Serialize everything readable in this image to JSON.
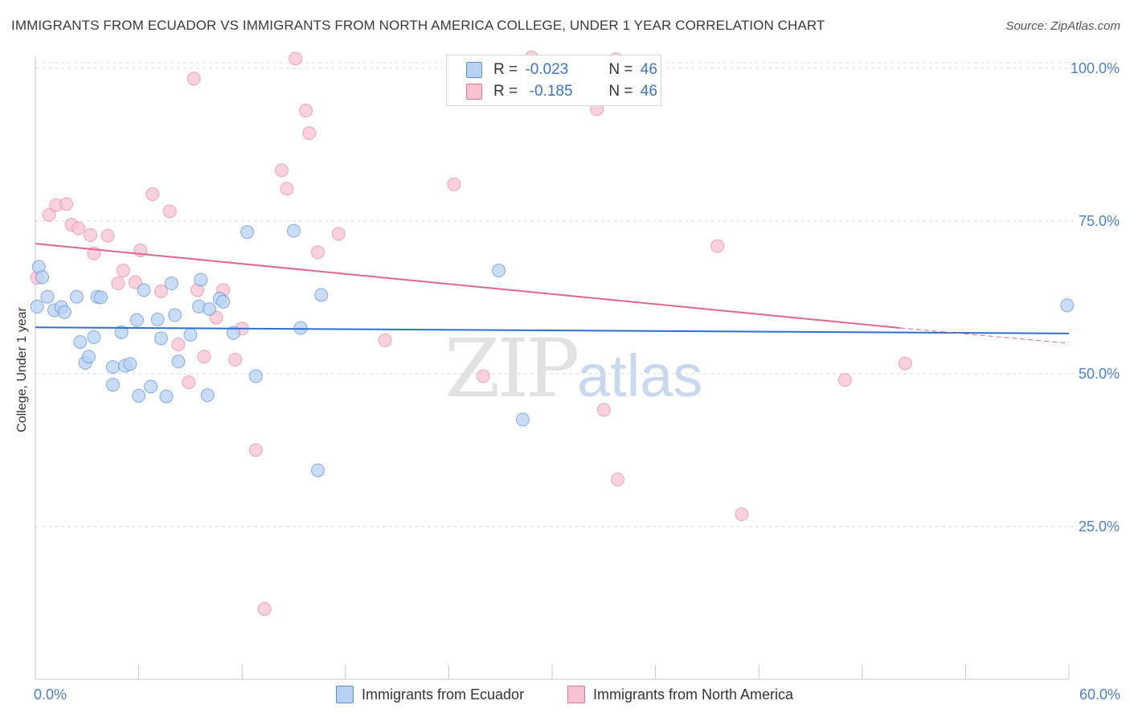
{
  "header": {
    "title": "IMMIGRANTS FROM ECUADOR VS IMMIGRANTS FROM NORTH AMERICA COLLEGE, UNDER 1 YEAR CORRELATION CHART",
    "source": "Source: ZipAtlas.com"
  },
  "watermark": {
    "zip": "ZIP",
    "atlas": "atlas"
  },
  "legend": {
    "series1": {
      "r_label": "R = ",
      "r_value": "-0.023",
      "n_label": "N = ",
      "n_value": "46"
    },
    "series2": {
      "r_label": "R = ",
      "r_value": " -0.185",
      "n_label": "N = ",
      "n_value": "46"
    }
  },
  "chart_data": {
    "type": "scatter",
    "title": "IMMIGRANTS FROM ECUADOR VS IMMIGRANTS FROM NORTH AMERICA COLLEGE, UNDER 1 YEAR CORRELATION CHART",
    "xlabel": "",
    "ylabel": "College, Under 1 year",
    "xlim": [
      0,
      60
    ],
    "ylim": [
      0,
      105
    ],
    "x_tick_labels": [
      "0.0%",
      "60.0%"
    ],
    "y_ticks": [
      25,
      50,
      75,
      100
    ],
    "y_tick_labels": [
      "25.0%",
      "50.0%",
      "75.0%",
      "100.0%"
    ],
    "colors": {
      "ecuador": "#5b8fd9",
      "ecuador_fill": "#b8d1f3",
      "north_america": "#e8749a",
      "north_america_fill": "#f8c3d3"
    },
    "series": [
      {
        "name": "Immigrants from Ecuador",
        "trend": {
          "x": [
            0,
            60
          ],
          "y": [
            57.6,
            56.6
          ]
        },
        "points": [
          [
            0.2,
            67.5
          ],
          [
            0.4,
            65.8
          ],
          [
            0.7,
            62.6
          ],
          [
            1.1,
            60.4
          ],
          [
            1.5,
            60.9
          ],
          [
            1.7,
            60.1
          ],
          [
            2.4,
            62.6
          ],
          [
            2.6,
            55.2
          ],
          [
            2.9,
            51.8
          ],
          [
            3.1,
            52.8
          ],
          [
            3.4,
            56.0
          ],
          [
            3.6,
            62.6
          ],
          [
            3.8,
            62.5
          ],
          [
            4.5,
            51.1
          ],
          [
            4.5,
            48.2
          ],
          [
            5.0,
            56.8
          ],
          [
            5.2,
            51.3
          ],
          [
            5.5,
            51.6
          ],
          [
            5.9,
            58.8
          ],
          [
            6.0,
            46.4
          ],
          [
            6.3,
            63.7
          ],
          [
            6.7,
            47.9
          ],
          [
            7.1,
            58.9
          ],
          [
            7.3,
            55.8
          ],
          [
            7.6,
            46.3
          ],
          [
            7.9,
            64.8
          ],
          [
            8.1,
            59.6
          ],
          [
            8.3,
            52.0
          ],
          [
            9.0,
            56.4
          ],
          [
            9.5,
            61.0
          ],
          [
            9.6,
            65.4
          ],
          [
            10.0,
            46.5
          ],
          [
            10.1,
            60.6
          ],
          [
            10.7,
            62.3
          ],
          [
            10.9,
            61.8
          ],
          [
            11.5,
            56.7
          ],
          [
            12.3,
            73.2
          ],
          [
            12.8,
            49.6
          ],
          [
            15.0,
            73.4
          ],
          [
            15.4,
            57.5
          ],
          [
            16.4,
            34.2
          ],
          [
            16.6,
            62.9
          ],
          [
            26.9,
            66.9
          ],
          [
            28.3,
            42.5
          ],
          [
            59.9,
            61.2
          ],
          [
            0.1,
            61.0
          ]
        ]
      },
      {
        "name": "Immigrants from North America",
        "trend": {
          "x": [
            0,
            50.2
          ],
          "y": [
            71.3,
            57.5
          ]
        },
        "trend_dashed": {
          "x": [
            50.2,
            60
          ],
          "y": [
            57.5,
            55.0
          ]
        },
        "points": [
          [
            0.1,
            65.7
          ],
          [
            0.8,
            76.0
          ],
          [
            1.2,
            77.6
          ],
          [
            1.8,
            77.8
          ],
          [
            2.1,
            74.4
          ],
          [
            2.5,
            73.8
          ],
          [
            3.2,
            72.7
          ],
          [
            3.4,
            69.7
          ],
          [
            4.2,
            72.6
          ],
          [
            4.8,
            64.8
          ],
          [
            5.1,
            66.9
          ],
          [
            5.8,
            65.0
          ],
          [
            6.1,
            70.2
          ],
          [
            6.8,
            79.4
          ],
          [
            7.3,
            63.5
          ],
          [
            7.8,
            76.6
          ],
          [
            8.3,
            54.8
          ],
          [
            8.9,
            48.6
          ],
          [
            9.4,
            63.7
          ],
          [
            9.8,
            52.8
          ],
          [
            10.5,
            59.2
          ],
          [
            10.9,
            63.7
          ],
          [
            11.6,
            52.3
          ],
          [
            12.0,
            57.4
          ],
          [
            12.8,
            37.5
          ],
          [
            13.3,
            11.5
          ],
          [
            14.3,
            83.3
          ],
          [
            14.6,
            80.3
          ],
          [
            15.1,
            101.6
          ],
          [
            15.7,
            93.1
          ],
          [
            15.9,
            89.4
          ],
          [
            16.4,
            69.9
          ],
          [
            17.6,
            72.9
          ],
          [
            20.3,
            55.5
          ],
          [
            24.3,
            81.0
          ],
          [
            26.0,
            49.6
          ],
          [
            28.8,
            101.8
          ],
          [
            32.6,
            93.3
          ],
          [
            33.0,
            44.1
          ],
          [
            33.8,
            32.7
          ],
          [
            39.6,
            70.9
          ],
          [
            41.0,
            27.0
          ],
          [
            47.0,
            49.0
          ],
          [
            50.5,
            51.7
          ],
          [
            9.2,
            98.3
          ],
          [
            33.7,
            101.5
          ]
        ]
      }
    ]
  },
  "bottom_legend": {
    "ecuador": "Immigrants from Ecuador",
    "north_america": "Immigrants from North America"
  }
}
